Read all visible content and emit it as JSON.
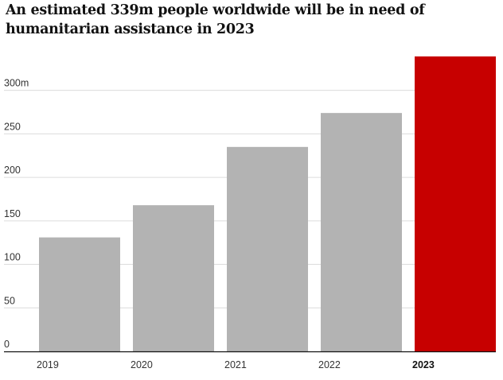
{
  "chart_data": {
    "type": "bar",
    "title": "An estimated 339m people worldwide will be in need of humanitarian assistance in 2023",
    "categories": [
      "2019",
      "2020",
      "2021",
      "2022",
      "2023"
    ],
    "values": [
      131,
      168,
      235,
      274,
      339
    ],
    "ylim": [
      0,
      339
    ],
    "yticks": [
      0,
      50,
      100,
      150,
      200,
      250,
      300
    ],
    "ytick_labels": [
      "0",
      "50",
      "100",
      "150",
      "200",
      "250",
      "300m"
    ],
    "xlabel": "",
    "ylabel": "",
    "highlight_index": 4,
    "grid": true,
    "colors": {
      "bar": "#b3b3b3",
      "highlight": "#c70000",
      "grid": "#dcdcdc",
      "axis": "#121212"
    }
  }
}
